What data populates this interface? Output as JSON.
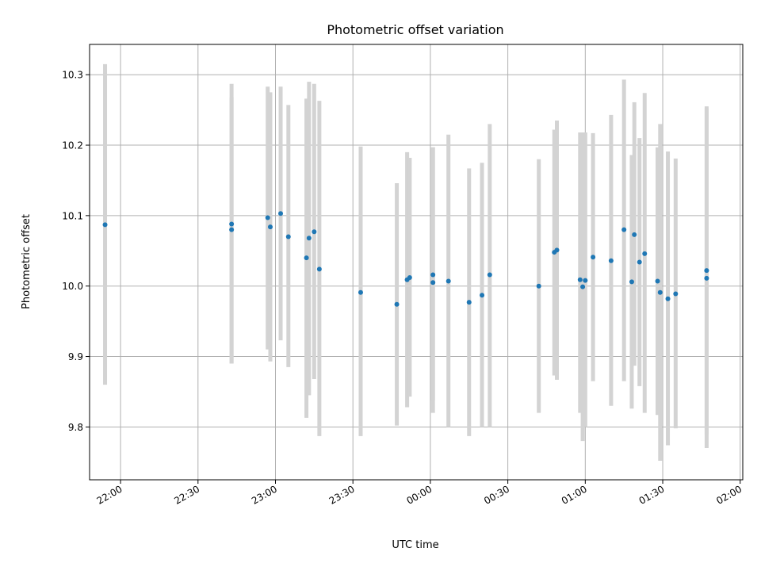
{
  "chart_data": {
    "type": "scatter",
    "title": "Photometric offset variation",
    "xlabel": "UTC time",
    "ylabel": "Photometric offset",
    "x_unit": "UTC time (HH:MM), past midnight continues beyond 24:00",
    "xlim": [
      "21:48",
      "02:01"
    ],
    "ylim": [
      9.725,
      10.343
    ],
    "grid": true,
    "legend": "none",
    "x_ticks": [
      "22:00",
      "22:30",
      "23:00",
      "23:30",
      "00:00",
      "00:30",
      "01:00",
      "01:30",
      "02:00"
    ],
    "y_ticks": [
      "9.8",
      "9.9",
      "10.0",
      "10.1",
      "10.2",
      "10.3"
    ],
    "colors": {
      "point": "#1f77b4",
      "errorbar": "#d3d3d3",
      "grid": "#b0b0b0"
    },
    "points": [
      {
        "t": "21:54",
        "y": 10.087,
        "lo": 9.86,
        "hi": 10.315
      },
      {
        "t": "22:43",
        "y": 10.088,
        "lo": 9.89,
        "hi": 10.287
      },
      {
        "t": "22:43",
        "y": 10.08,
        "lo": 9.89,
        "hi": 10.268
      },
      {
        "t": "22:57",
        "y": 10.097,
        "lo": 9.91,
        "hi": 10.283
      },
      {
        "t": "22:58",
        "y": 10.084,
        "lo": 9.893,
        "hi": 10.275
      },
      {
        "t": "23:02",
        "y": 10.103,
        "lo": 9.923,
        "hi": 10.283
      },
      {
        "t": "23:05",
        "y": 10.07,
        "lo": 9.885,
        "hi": 10.257
      },
      {
        "t": "23:12",
        "y": 10.04,
        "lo": 9.813,
        "hi": 10.266
      },
      {
        "t": "23:13",
        "y": 10.068,
        "lo": 9.845,
        "hi": 10.29
      },
      {
        "t": "23:15",
        "y": 10.077,
        "lo": 9.868,
        "hi": 10.287
      },
      {
        "t": "23:17",
        "y": 10.024,
        "lo": 9.787,
        "hi": 10.263
      },
      {
        "t": "23:33",
        "y": 9.991,
        "lo": 9.787,
        "hi": 10.198
      },
      {
        "t": "23:47",
        "y": 9.974,
        "lo": 9.802,
        "hi": 10.146
      },
      {
        "t": "23:51",
        "y": 10.009,
        "lo": 9.828,
        "hi": 10.19
      },
      {
        "t": "23:52",
        "y": 10.012,
        "lo": 9.843,
        "hi": 10.182
      },
      {
        "t": "24:01",
        "y": 10.005,
        "lo": 9.82,
        "hi": 10.197
      },
      {
        "t": "24:01",
        "y": 10.016,
        "lo": 9.838,
        "hi": 10.197
      },
      {
        "t": "24:07",
        "y": 10.007,
        "lo": 9.8,
        "hi": 10.215
      },
      {
        "t": "24:15",
        "y": 9.977,
        "lo": 9.787,
        "hi": 10.167
      },
      {
        "t": "24:20",
        "y": 9.987,
        "lo": 9.8,
        "hi": 10.175
      },
      {
        "t": "24:23",
        "y": 10.016,
        "lo": 9.8,
        "hi": 10.23
      },
      {
        "t": "24:42",
        "y": 10.0,
        "lo": 9.82,
        "hi": 10.18
      },
      {
        "t": "24:48",
        "y": 10.048,
        "lo": 9.873,
        "hi": 10.222
      },
      {
        "t": "24:49",
        "y": 10.051,
        "lo": 9.867,
        "hi": 10.235
      },
      {
        "t": "24:58",
        "y": 10.009,
        "lo": 9.82,
        "hi": 10.218
      },
      {
        "t": "24:59",
        "y": 9.999,
        "lo": 9.78,
        "hi": 10.218
      },
      {
        "t": "25:00",
        "y": 10.008,
        "lo": 9.8,
        "hi": 10.218
      },
      {
        "t": "25:03",
        "y": 10.041,
        "lo": 9.865,
        "hi": 10.217
      },
      {
        "t": "25:10",
        "y": 10.036,
        "lo": 9.83,
        "hi": 10.243
      },
      {
        "t": "25:15",
        "y": 10.08,
        "lo": 9.865,
        "hi": 10.293
      },
      {
        "t": "25:18",
        "y": 10.006,
        "lo": 9.826,
        "hi": 10.186
      },
      {
        "t": "25:19",
        "y": 10.073,
        "lo": 9.887,
        "hi": 10.261
      },
      {
        "t": "25:21",
        "y": 10.034,
        "lo": 9.858,
        "hi": 10.21
      },
      {
        "t": "25:23",
        "y": 10.046,
        "lo": 9.82,
        "hi": 10.274
      },
      {
        "t": "25:28",
        "y": 10.007,
        "lo": 9.817,
        "hi": 10.197
      },
      {
        "t": "25:29",
        "y": 9.991,
        "lo": 9.752,
        "hi": 10.23
      },
      {
        "t": "25:32",
        "y": 9.982,
        "lo": 9.774,
        "hi": 10.191
      },
      {
        "t": "25:35",
        "y": 9.989,
        "lo": 9.798,
        "hi": 10.181
      },
      {
        "t": "25:47",
        "y": 10.011,
        "lo": 9.77,
        "hi": 10.252
      },
      {
        "t": "25:47",
        "y": 10.022,
        "lo": 9.79,
        "hi": 10.255
      }
    ]
  }
}
